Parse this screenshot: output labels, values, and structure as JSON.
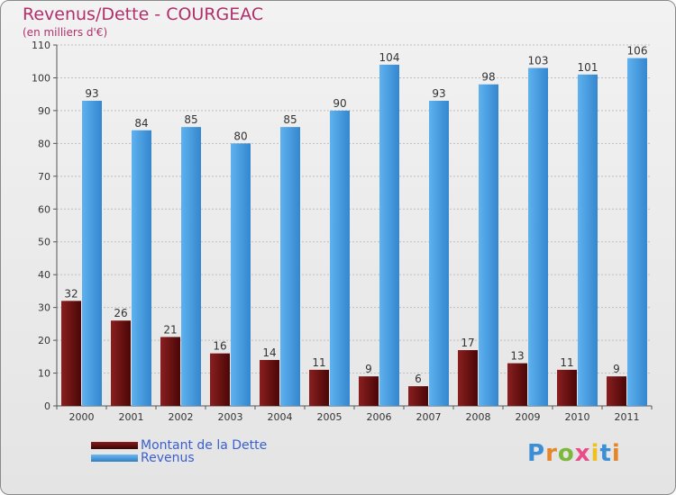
{
  "header": {
    "title": "Revenus/Dette - COURGEAC",
    "subtitle": "(en milliers d'€)"
  },
  "legend": {
    "debt_label": "Montant de la Dette",
    "revenue_label": "Revenus"
  },
  "brand": {
    "logo_text": "Proxiti"
  },
  "colors": {
    "debt": "#6b0d0d",
    "revenue": "#4a9fe3",
    "grid": "#bfbfbf",
    "title": "#b0306b"
  },
  "chart_data": {
    "type": "bar",
    "title": "Revenus/Dette - COURGEAC",
    "subtitle": "(en milliers d'€)",
    "xlabel": "",
    "ylabel": "",
    "categories": [
      "2000",
      "2001",
      "2002",
      "2003",
      "2004",
      "2005",
      "2006",
      "2007",
      "2008",
      "2009",
      "2010",
      "2011"
    ],
    "series": [
      {
        "name": "Montant de la Dette",
        "values": [
          32,
          26,
          21,
          16,
          14,
          11,
          9,
          6,
          17,
          13,
          11,
          9
        ]
      },
      {
        "name": "Revenus",
        "values": [
          93,
          84,
          85,
          80,
          85,
          90,
          104,
          93,
          98,
          103,
          101,
          106
        ]
      }
    ],
    "ylim": [
      0,
      110
    ],
    "yticks": [
      0,
      10,
      20,
      30,
      40,
      50,
      60,
      70,
      80,
      90,
      100,
      110
    ],
    "grid": true,
    "legend_position": "bottom-left"
  }
}
